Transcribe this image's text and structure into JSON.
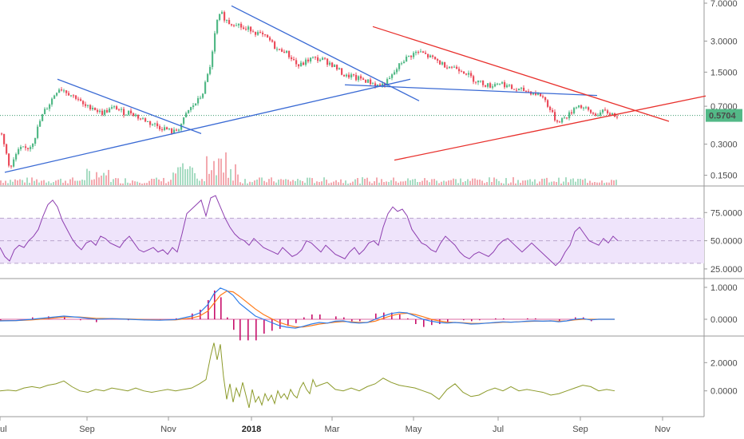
{
  "chart_data": [
    {
      "pane": "price",
      "type": "candlestick",
      "y_scale": "log",
      "ylim": [
        0.12,
        7.0
      ],
      "y_ticks": [
        "7.0000",
        "3.0000",
        "1.5000",
        "0.7000",
        "0.3000",
        "0.1500"
      ],
      "last_price_label": "0.5704",
      "last_price": 0.5704,
      "colors": {
        "up": "#53b987",
        "down": "#eb4d5c",
        "last_price_bg": "#53b987",
        "blue_lines": "#3a6ad4",
        "red_lines": "#e8302c"
      },
      "close_path": [
        [
          0,
          0.38
        ],
        [
          6,
          0.26
        ],
        [
          12,
          0.17
        ],
        [
          18,
          0.23
        ],
        [
          24,
          0.27
        ],
        [
          30,
          0.27
        ],
        [
          36,
          0.28
        ],
        [
          42,
          0.34
        ],
        [
          48,
          0.48
        ],
        [
          54,
          0.62
        ],
        [
          60,
          0.72
        ],
        [
          66,
          0.88
        ],
        [
          72,
          1.05
        ],
        [
          78,
          1.02
        ],
        [
          84,
          0.95
        ],
        [
          90,
          0.88
        ],
        [
          96,
          0.85
        ],
        [
          102,
          0.72
        ],
        [
          108,
          0.68
        ],
        [
          114,
          0.7
        ],
        [
          120,
          0.64
        ],
        [
          126,
          0.6
        ],
        [
          132,
          0.63
        ],
        [
          138,
          0.66
        ],
        [
          144,
          0.68
        ],
        [
          150,
          0.63
        ],
        [
          156,
          0.6
        ],
        [
          162,
          0.62
        ],
        [
          168,
          0.58
        ],
        [
          174,
          0.53
        ],
        [
          180,
          0.52
        ],
        [
          186,
          0.48
        ],
        [
          192,
          0.47
        ],
        [
          198,
          0.44
        ],
        [
          204,
          0.43
        ],
        [
          210,
          0.41
        ],
        [
          216,
          0.39
        ],
        [
          222,
          0.42
        ],
        [
          228,
          0.5
        ],
        [
          234,
          0.62
        ],
        [
          240,
          0.7
        ],
        [
          246,
          0.78
        ],
        [
          252,
          0.9
        ],
        [
          258,
          1.3
        ],
        [
          264,
          2.0
        ],
        [
          270,
          4.5
        ],
        [
          276,
          5.6
        ],
        [
          282,
          4.8
        ],
        [
          288,
          4.4
        ],
        [
          294,
          4.6
        ],
        [
          300,
          4.2
        ],
        [
          306,
          3.8
        ],
        [
          312,
          4.0
        ],
        [
          318,
          3.7
        ],
        [
          324,
          3.5
        ],
        [
          330,
          3.3
        ],
        [
          336,
          3.1
        ],
        [
          342,
          2.7
        ],
        [
          348,
          2.4
        ],
        [
          354,
          2.5
        ],
        [
          360,
          2.2
        ],
        [
          366,
          2.0
        ],
        [
          372,
          1.7
        ],
        [
          378,
          1.8
        ],
        [
          384,
          1.95
        ],
        [
          390,
          2.05
        ],
        [
          396,
          2.0
        ],
        [
          402,
          2.0
        ],
        [
          408,
          1.9
        ],
        [
          414,
          1.8
        ],
        [
          420,
          1.65
        ],
        [
          426,
          1.5
        ],
        [
          432,
          1.35
        ],
        [
          438,
          1.4
        ],
        [
          444,
          1.3
        ],
        [
          450,
          1.3
        ],
        [
          456,
          1.25
        ],
        [
          462,
          1.2
        ],
        [
          468,
          1.15
        ],
        [
          474,
          1.1
        ],
        [
          480,
          1.15
        ],
        [
          486,
          1.25
        ],
        [
          492,
          1.45
        ],
        [
          498,
          1.7
        ],
        [
          504,
          1.95
        ],
        [
          510,
          2.1
        ],
        [
          516,
          2.25
        ],
        [
          522,
          2.35
        ],
        [
          528,
          2.3
        ],
        [
          534,
          2.15
        ],
        [
          540,
          2.05
        ],
        [
          546,
          1.95
        ],
        [
          552,
          1.8
        ],
        [
          558,
          1.75
        ],
        [
          564,
          1.7
        ],
        [
          570,
          1.65
        ],
        [
          576,
          1.6
        ],
        [
          582,
          1.5
        ],
        [
          588,
          1.35
        ],
        [
          594,
          1.25
        ],
        [
          600,
          1.2
        ],
        [
          606,
          1.15
        ],
        [
          612,
          1.1
        ],
        [
          618,
          1.15
        ],
        [
          624,
          1.2
        ],
        [
          630,
          1.15
        ],
        [
          636,
          1.08
        ],
        [
          642,
          1.02
        ],
        [
          648,
          1.0
        ],
        [
          654,
          1.0
        ],
        [
          660,
          0.98
        ],
        [
          666,
          0.95
        ],
        [
          672,
          0.92
        ],
        [
          678,
          0.88
        ],
        [
          684,
          0.75
        ],
        [
          690,
          0.6
        ],
        [
          696,
          0.5
        ],
        [
          702,
          0.52
        ],
        [
          708,
          0.55
        ],
        [
          714,
          0.6
        ],
        [
          720,
          0.72
        ],
        [
          726,
          0.7
        ],
        [
          732,
          0.66
        ],
        [
          738,
          0.61
        ],
        [
          744,
          0.58
        ],
        [
          750,
          0.6
        ],
        [
          756,
          0.62
        ],
        [
          762,
          0.6
        ],
        [
          768,
          0.58
        ],
        [
          774,
          0.57
        ]
      ],
      "trend_lines": [
        {
          "color": "blue",
          "from": [
            72,
            1.28
          ],
          "to": [
            252,
            0.38
          ]
        },
        {
          "color": "blue",
          "from": [
            6,
            0.16
          ],
          "to": [
            514,
            1.28
          ]
        },
        {
          "color": "blue",
          "from": [
            290,
            6.6
          ],
          "to": [
            525,
            0.79
          ]
        },
        {
          "color": "blue",
          "from": [
            432,
            1.13
          ],
          "to": [
            748,
            0.89
          ]
        },
        {
          "color": "red",
          "from": [
            467,
            4.15
          ],
          "to": [
            838,
            0.5
          ]
        },
        {
          "color": "red",
          "from": [
            494,
            0.21
          ],
          "to": [
            884,
            0.88
          ]
        }
      ]
    },
    {
      "pane": "rsi",
      "type": "line",
      "ylim": [
        20,
        95
      ],
      "y_ticks": [
        "75.0000",
        "50.0000",
        "25.0000"
      ],
      "band": [
        30,
        70
      ],
      "colors": {
        "line": "#8e3fb0",
        "band": "#efe4fb",
        "band_border": "#b9a5cc"
      },
      "x": [
        0,
        6,
        12,
        18,
        24,
        30,
        36,
        42,
        48,
        54,
        60,
        66,
        72,
        78,
        84,
        90,
        96,
        102,
        108,
        114,
        120,
        126,
        132,
        138,
        144,
        150,
        156,
        162,
        168,
        174,
        180,
        186,
        192,
        198,
        204,
        210,
        216,
        222,
        228,
        234,
        240,
        246,
        252,
        258,
        264,
        270,
        276,
        282,
        288,
        294,
        300,
        306,
        312,
        318,
        324,
        330,
        336,
        342,
        348,
        354,
        360,
        366,
        372,
        378,
        384,
        390,
        396,
        402,
        408,
        414,
        420,
        426,
        432,
        438,
        444,
        450,
        456,
        462,
        468,
        474,
        480,
        486,
        492,
        498,
        504,
        510,
        516,
        522,
        528,
        534,
        540,
        546,
        552,
        558,
        564,
        570,
        576,
        582,
        588,
        594,
        600,
        606,
        612,
        618,
        624,
        630,
        636,
        642,
        648,
        654,
        660,
        666,
        672,
        678,
        684,
        690,
        696,
        702,
        708,
        714,
        720,
        726,
        732,
        738,
        744,
        750,
        756,
        762,
        768,
        774
      ],
      "values": [
        44,
        36,
        32,
        42,
        46,
        44,
        50,
        54,
        60,
        72,
        82,
        86,
        80,
        68,
        60,
        52,
        46,
        42,
        48,
        50,
        46,
        54,
        52,
        48,
        46,
        44,
        50,
        54,
        48,
        42,
        40,
        42,
        44,
        40,
        42,
        38,
        44,
        40,
        56,
        74,
        78,
        82,
        86,
        72,
        88,
        90,
        80,
        70,
        62,
        56,
        52,
        50,
        46,
        52,
        48,
        44,
        42,
        40,
        38,
        44,
        40,
        36,
        38,
        42,
        50,
        48,
        44,
        40,
        46,
        42,
        38,
        36,
        34,
        40,
        44,
        38,
        42,
        48,
        50,
        46,
        62,
        74,
        80,
        76,
        78,
        72,
        60,
        54,
        48,
        46,
        42,
        40,
        48,
        54,
        50,
        46,
        40,
        36,
        34,
        38,
        40,
        38,
        36,
        40,
        46,
        50,
        52,
        48,
        44,
        40,
        44,
        48,
        44,
        40,
        36,
        32,
        28,
        32,
        40,
        46,
        58,
        62,
        56,
        50,
        48,
        46,
        52,
        48,
        54,
        50
      ]
    },
    {
      "pane": "macd",
      "type": "line",
      "ylim": [
        -0.4,
        1.15
      ],
      "y_ticks": [
        "1.0000",
        "0.0000"
      ],
      "colors": {
        "macd": "#2e7de9",
        "signal": "#ff7b1a",
        "histogram": "#c70f6b"
      },
      "x": [
        0,
        20,
        40,
        60,
        80,
        100,
        120,
        140,
        160,
        180,
        200,
        220,
        240,
        250,
        260,
        268,
        276,
        284,
        292,
        300,
        310,
        320,
        330,
        340,
        350,
        360,
        370,
        380,
        390,
        400,
        410,
        420,
        430,
        440,
        450,
        460,
        470,
        480,
        490,
        500,
        510,
        520,
        530,
        540,
        550,
        560,
        570,
        580,
        590,
        600,
        610,
        620,
        630,
        640,
        650,
        660,
        670,
        680,
        690,
        700,
        710,
        720,
        730,
        740,
        750,
        760,
        770
      ],
      "macd": [
        -0.05,
        -0.04,
        0.0,
        0.05,
        0.1,
        0.06,
        0.0,
        0.02,
        0.0,
        -0.02,
        -0.03,
        -0.01,
        0.1,
        0.2,
        0.45,
        0.8,
        0.98,
        0.9,
        0.75,
        0.5,
        0.3,
        0.1,
        0.0,
        -0.1,
        -0.2,
        -0.25,
        -0.28,
        -0.22,
        -0.15,
        -0.1,
        -0.12,
        -0.06,
        -0.05,
        -0.1,
        -0.12,
        -0.1,
        0.0,
        0.1,
        0.18,
        0.22,
        0.2,
        0.1,
        0.0,
        -0.06,
        -0.1,
        -0.12,
        -0.1,
        -0.12,
        -0.15,
        -0.14,
        -0.12,
        -0.1,
        -0.08,
        -0.09,
        -0.08,
        -0.06,
        -0.05,
        -0.06,
        -0.05,
        -0.08,
        -0.05,
        0.0,
        0.02,
        -0.02,
        0.0,
        0.0,
        0.0
      ],
      "signal": [
        -0.04,
        -0.04,
        -0.02,
        0.02,
        0.07,
        0.07,
        0.03,
        0.02,
        0.01,
        -0.01,
        -0.02,
        -0.02,
        0.04,
        0.1,
        0.25,
        0.5,
        0.75,
        0.88,
        0.86,
        0.72,
        0.52,
        0.32,
        0.15,
        0.02,
        -0.1,
        -0.18,
        -0.24,
        -0.24,
        -0.2,
        -0.15,
        -0.12,
        -0.09,
        -0.07,
        -0.08,
        -0.1,
        -0.1,
        -0.06,
        0.03,
        0.11,
        0.17,
        0.19,
        0.15,
        0.08,
        0.0,
        -0.05,
        -0.09,
        -0.1,
        -0.11,
        -0.13,
        -0.13,
        -0.12,
        -0.11,
        -0.09,
        -0.09,
        -0.08,
        -0.07,
        -0.06,
        -0.06,
        -0.05,
        -0.06,
        -0.05,
        -0.02,
        0.0,
        0.0,
        0.0,
        0.0,
        0.0
      ]
    },
    {
      "pane": "oscillator",
      "type": "line",
      "ylim": [
        -1.6,
        3.6
      ],
      "y_ticks": [
        "2.0000",
        "0.0000"
      ],
      "colors": {
        "line": "#8c9a2a"
      },
      "x": [
        0,
        10,
        20,
        30,
        40,
        50,
        60,
        70,
        80,
        90,
        100,
        110,
        120,
        130,
        140,
        150,
        160,
        170,
        180,
        190,
        200,
        210,
        220,
        230,
        240,
        250,
        258,
        264,
        268,
        272,
        276,
        280,
        284,
        288,
        292,
        296,
        300,
        304,
        308,
        312,
        316,
        320,
        324,
        328,
        332,
        336,
        340,
        344,
        348,
        352,
        356,
        360,
        364,
        368,
        372,
        376,
        380,
        384,
        388,
        392,
        396,
        400,
        410,
        420,
        430,
        440,
        450,
        460,
        470,
        480,
        490,
        500,
        510,
        520,
        530,
        540,
        550,
        560,
        570,
        580,
        590,
        600,
        610,
        620,
        630,
        640,
        650,
        660,
        670,
        680,
        690,
        700,
        710,
        720,
        730,
        740,
        750,
        760,
        770
      ],
      "values": [
        0.0,
        0.05,
        0.0,
        0.2,
        0.3,
        0.2,
        0.4,
        0.5,
        0.7,
        0.3,
        0.0,
        -0.1,
        0.1,
        0.0,
        0.2,
        0.1,
        0.0,
        0.2,
        0.0,
        -0.1,
        0.0,
        0.1,
        0.0,
        0.1,
        0.2,
        0.5,
        0.8,
        2.5,
        3.4,
        2.2,
        3.3,
        1.0,
        -0.6,
        0.5,
        -0.8,
        0.2,
        -0.4,
        0.6,
        -0.3,
        -1.2,
        0.1,
        -0.8,
        -0.4,
        -1.0,
        -0.2,
        -0.7,
        -0.3,
        -0.9,
        0.0,
        -0.5,
        -0.2,
        -0.6,
        0.1,
        -0.3,
        -0.5,
        0.2,
        0.6,
        0.1,
        -0.2,
        0.8,
        0.3,
        0.4,
        0.6,
        0.1,
        0.0,
        0.2,
        0.0,
        0.3,
        0.5,
        0.9,
        0.6,
        0.4,
        0.3,
        0.2,
        0.0,
        -0.2,
        -0.6,
        0.1,
        0.5,
        -0.1,
        -0.4,
        -0.3,
        0.0,
        0.2,
        0.0,
        0.3,
        0.0,
        0.1,
        0.0,
        -0.1,
        -0.3,
        -0.2,
        0.0,
        0.2,
        0.4,
        0.3,
        0.0,
        0.1,
        0.0
      ]
    }
  ],
  "x_axis": {
    "labels": [
      "ul",
      "Sep",
      "Nov",
      "2018",
      "Mar",
      "May",
      "Jul",
      "Sep",
      "Nov"
    ],
    "bold_index": 3,
    "positions": [
      0,
      109,
      211,
      315,
      416,
      518,
      624,
      727,
      830
    ]
  },
  "volume": {
    "up_color": "#a8dcc3",
    "down_color": "#f3a9af"
  }
}
